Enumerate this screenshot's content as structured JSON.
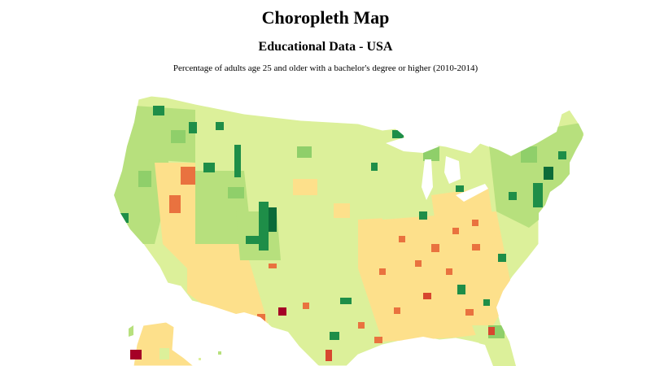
{
  "header": {
    "title": "Choropleth Map",
    "subtitle": "Educational Data - USA",
    "description": "Percentage of adults age 25 and older with a bachelor's degree or higher (2010-2014)"
  },
  "colors": {
    "very_low": "#d7472f",
    "low": "#e9723f",
    "below_avg": "#fde08b",
    "average": "#dcf09a",
    "above_avg": "#b7e07d",
    "high": "#8fcf6a",
    "very_high": "#1e8e48",
    "highest": "#0c6b39",
    "lowest": "#a50026",
    "border": "#ffffff"
  }
}
